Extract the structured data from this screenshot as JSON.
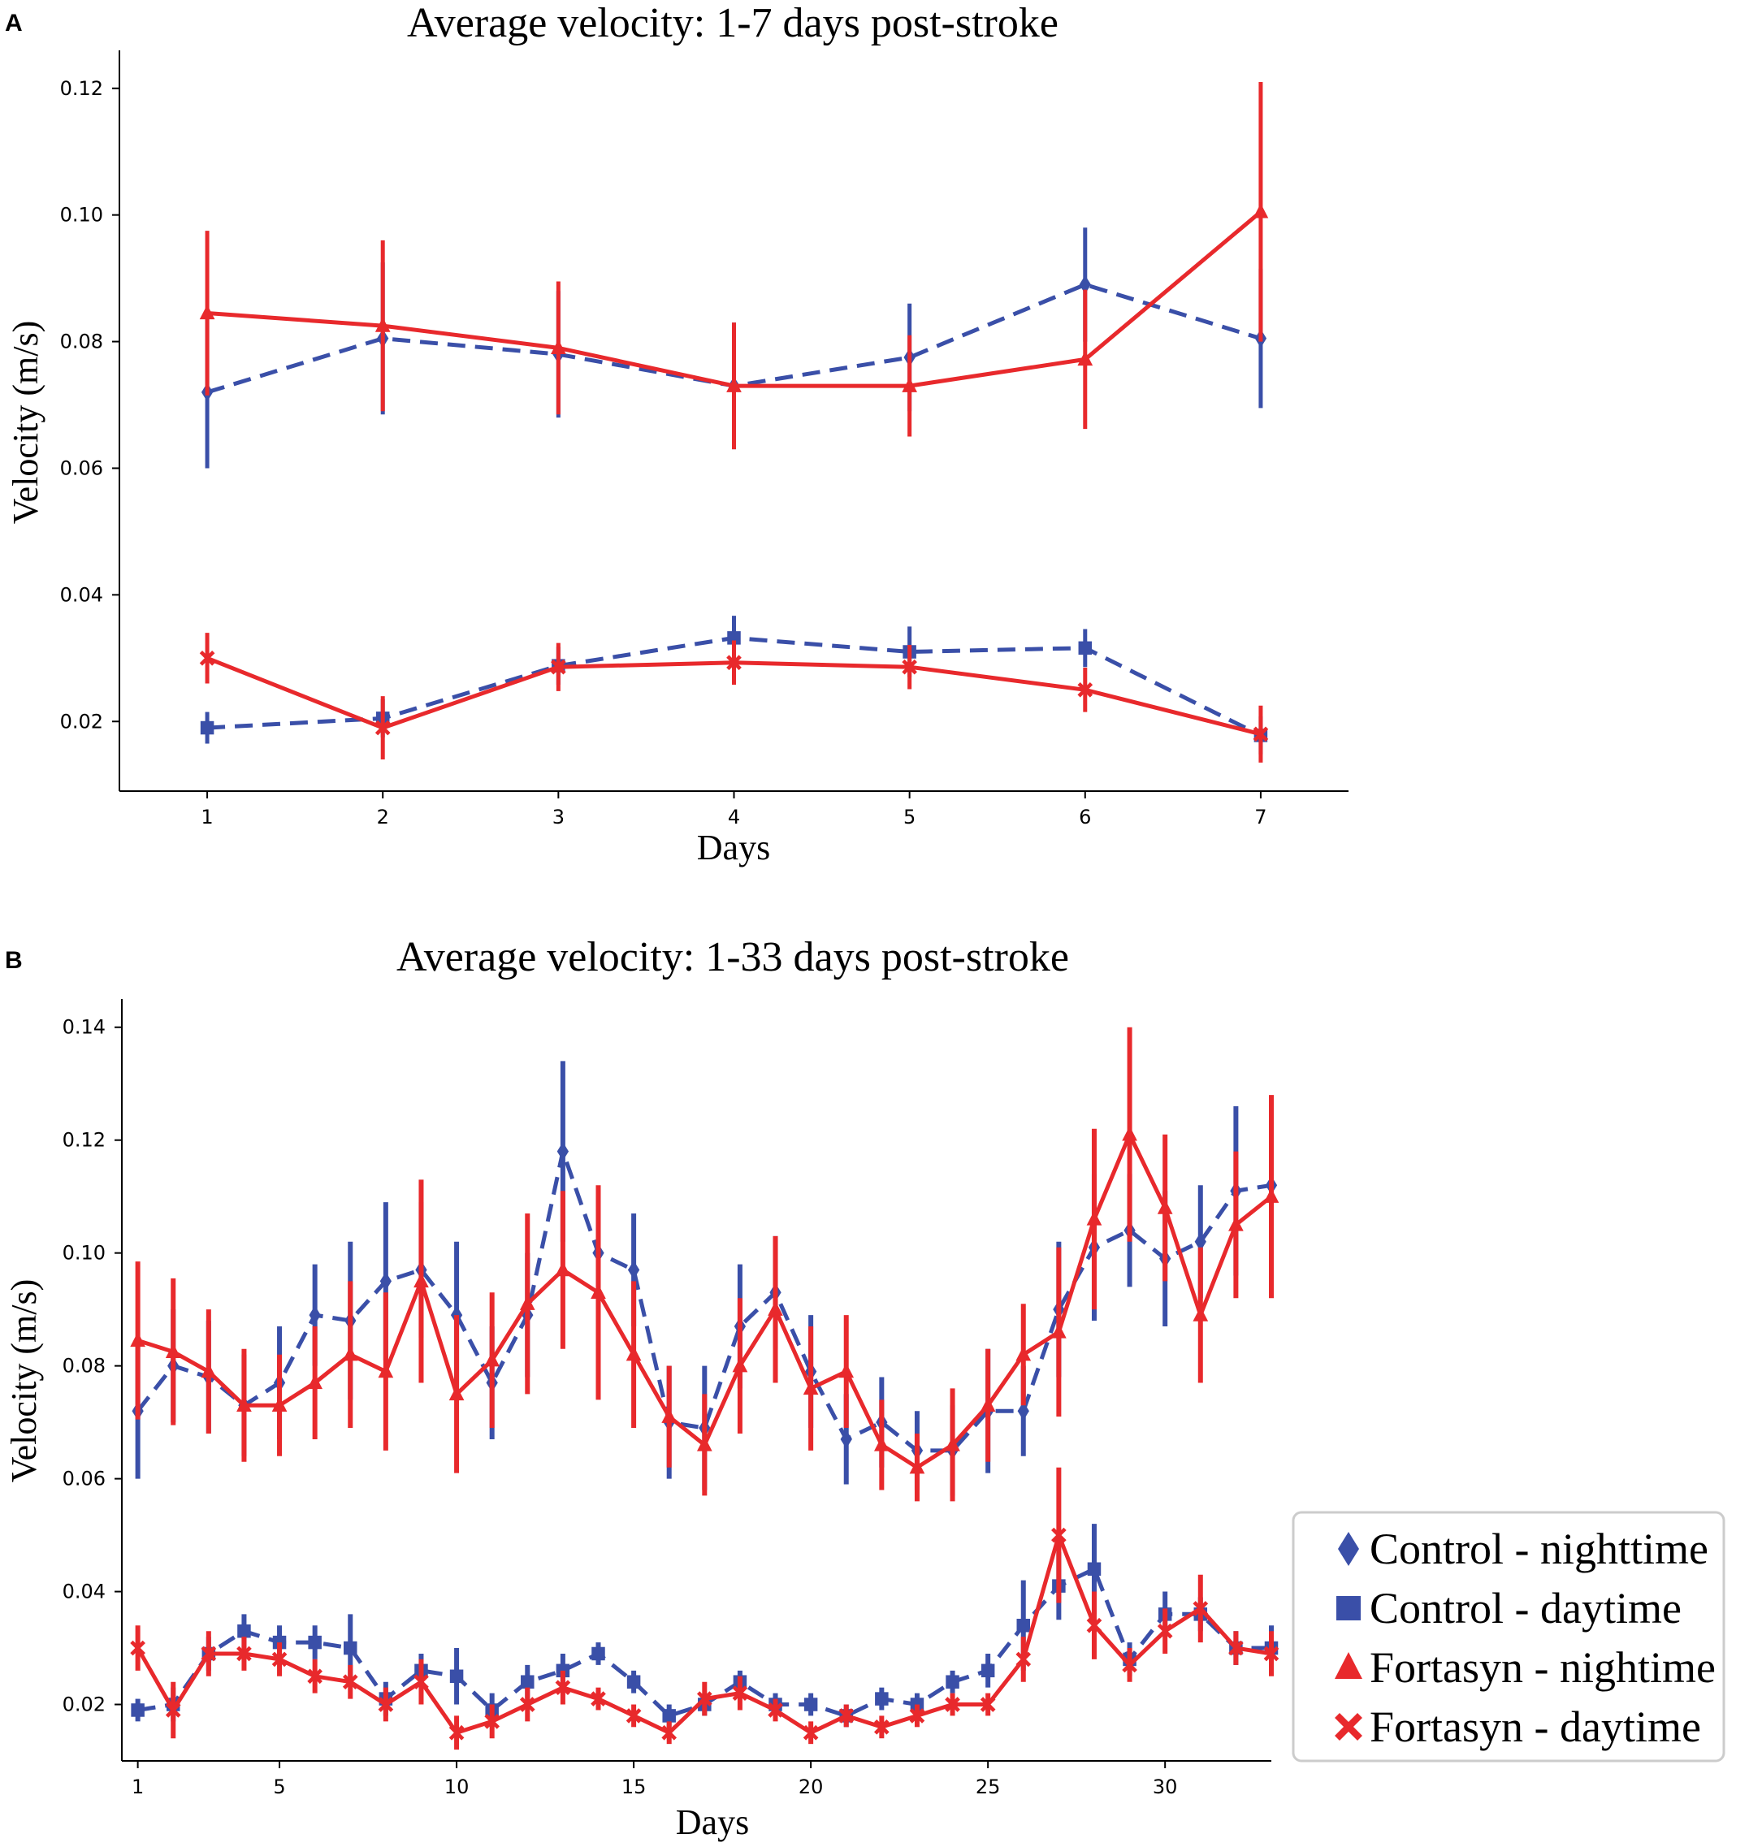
{
  "figure": {
    "panels": [
      {
        "letter": "A"
      },
      {
        "letter": "B"
      }
    ]
  },
  "colors": {
    "control": "#3a4fa8",
    "fortasyn": "#e8292c",
    "axis": "#000000",
    "legend_border": "#cccccc"
  },
  "legend": {
    "items": [
      {
        "label": "Control - nighttime",
        "marker": "diamond",
        "color": "#3a4fa8"
      },
      {
        "label": "Control - daytime",
        "marker": "square",
        "color": "#3a4fa8"
      },
      {
        "label": "Fortasyn - nightime",
        "marker": "triangle",
        "color": "#e8292c"
      },
      {
        "label": "Fortasyn - daytime",
        "marker": "x",
        "color": "#e8292c"
      }
    ]
  },
  "chart_data": [
    {
      "type": "line",
      "title": "Average velocity: 1-7 days post-stroke",
      "xlabel": "Days",
      "ylabel": "Velocity (m/s)",
      "xlim": [
        0.5,
        7.5
      ],
      "ylim": [
        0.009,
        0.126
      ],
      "xticks": [
        1,
        2,
        3,
        4,
        5,
        6,
        7
      ],
      "xtick_labels": [
        "1",
        "2",
        "3",
        "4",
        "5",
        "6",
        "7"
      ],
      "yticks": [
        0.02,
        0.04,
        0.06,
        0.08,
        0.1,
        0.12
      ],
      "ytick_labels": [
        "0.02",
        "0.04",
        "0.06",
        "0.08",
        "0.10",
        "0.12"
      ],
      "x": [
        1,
        2,
        3,
        4,
        5,
        6,
        7
      ],
      "series": [
        {
          "name": "Control - nighttime",
          "marker": "diamond",
          "dashed": true,
          "color": "#3a4fa8",
          "values": [
            0.072,
            0.0805,
            0.078,
            0.073,
            0.0775,
            0.089,
            0.0805
          ],
          "err": [
            0.012,
            0.012,
            0.01,
            0.01,
            0.0085,
            0.009,
            0.011
          ]
        },
        {
          "name": "Control - daytime",
          "marker": "square",
          "dashed": true,
          "color": "#3a4fa8",
          "values": [
            0.019,
            0.0205,
            0.0288,
            0.0332,
            0.031,
            0.0316,
            0.0178
          ],
          "err": [
            0.0025,
            0.003,
            0.003,
            0.0035,
            0.004,
            0.003,
            0.003
          ]
        },
        {
          "name": "Fortasyn - nightime",
          "marker": "triangle",
          "dashed": false,
          "color": "#e8292c",
          "values": [
            0.0845,
            0.0825,
            0.079,
            0.073,
            0.073,
            0.0772,
            0.1005
          ],
          "err": [
            0.013,
            0.0135,
            0.0105,
            0.01,
            0.008,
            0.011,
            0.0205
          ]
        },
        {
          "name": "Fortasyn - daytime",
          "marker": "x",
          "dashed": false,
          "color": "#e8292c",
          "values": [
            0.03,
            0.019,
            0.0286,
            0.0293,
            0.0286,
            0.025,
            0.018
          ],
          "err": [
            0.004,
            0.005,
            0.0038,
            0.0035,
            0.0035,
            0.0035,
            0.0045
          ]
        }
      ]
    },
    {
      "type": "line",
      "title": "Average velocity: 1-33 days post-stroke",
      "xlabel": "Days",
      "ylabel": "Velocity (m/s)",
      "xlim": [
        0.55,
        33.0
      ],
      "ylim": [
        0.01,
        0.145
      ],
      "xticks": [
        1,
        5,
        10,
        15,
        20,
        25,
        30
      ],
      "xtick_labels": [
        "1",
        "5",
        "10",
        "15",
        "20",
        "25",
        "30"
      ],
      "yticks": [
        0.02,
        0.04,
        0.06,
        0.08,
        0.1,
        0.12,
        0.14
      ],
      "ytick_labels": [
        "0.02",
        "0.04",
        "0.06",
        "0.08",
        "0.10",
        "0.12",
        "0.14"
      ],
      "x": [
        1,
        2,
        3,
        4,
        5,
        6,
        7,
        8,
        9,
        10,
        11,
        12,
        13,
        14,
        15,
        16,
        17,
        18,
        19,
        20,
        21,
        22,
        23,
        24,
        25,
        26,
        27,
        28,
        29,
        30,
        31,
        32,
        33
      ],
      "series": [
        {
          "name": "Control - nighttime",
          "marker": "diamond",
          "dashed": true,
          "color": "#3a4fa8",
          "values": [
            0.072,
            0.08,
            0.078,
            0.073,
            0.077,
            0.089,
            0.088,
            0.095,
            0.097,
            0.089,
            0.077,
            0.089,
            0.118,
            0.1,
            0.097,
            0.07,
            0.069,
            0.087,
            0.093,
            0.079,
            0.067,
            0.07,
            0.065,
            0.065,
            0.072,
            0.072,
            0.09,
            0.101,
            0.104,
            0.099,
            0.102,
            0.111,
            0.112
          ],
          "err": [
            0.012,
            0.01,
            0.01,
            0.009,
            0.01,
            0.009,
            0.014,
            0.014,
            0.012,
            0.013,
            0.01,
            0.011,
            0.016,
            0.01,
            0.01,
            0.01,
            0.011,
            0.011,
            0.01,
            0.01,
            0.008,
            0.008,
            0.007,
            0.008,
            0.011,
            0.008,
            0.012,
            0.013,
            0.01,
            0.012,
            0.01,
            0.015,
            0.012
          ]
        },
        {
          "name": "Control - daytime",
          "marker": "square",
          "dashed": true,
          "color": "#3a4fa8",
          "values": [
            0.019,
            0.02,
            0.029,
            0.033,
            0.031,
            0.031,
            0.03,
            0.021,
            0.026,
            0.025,
            0.019,
            0.024,
            0.026,
            0.029,
            0.024,
            0.018,
            0.02,
            0.024,
            0.02,
            0.02,
            0.018,
            0.021,
            0.02,
            0.024,
            0.026,
            0.034,
            0.041,
            0.044,
            0.028,
            0.036,
            0.036,
            0.03,
            0.03
          ],
          "err": [
            0.002,
            0.003,
            0.003,
            0.003,
            0.003,
            0.003,
            0.006,
            0.003,
            0.003,
            0.005,
            0.003,
            0.003,
            0.003,
            0.002,
            0.002,
            0.002,
            0.002,
            0.002,
            0.002,
            0.002,
            0.002,
            0.002,
            0.002,
            0.002,
            0.003,
            0.008,
            0.006,
            0.008,
            0.003,
            0.004,
            0.003,
            0.003,
            0.004
          ]
        },
        {
          "name": "Fortasyn - nightime",
          "marker": "triangle",
          "dashed": false,
          "color": "#e8292c",
          "values": [
            0.0845,
            0.0825,
            0.079,
            0.073,
            0.073,
            0.077,
            0.082,
            0.079,
            0.095,
            0.075,
            0.081,
            0.091,
            0.097,
            0.093,
            0.082,
            0.071,
            0.066,
            0.08,
            0.09,
            0.076,
            0.079,
            0.066,
            0.062,
            0.066,
            0.073,
            0.082,
            0.086,
            0.106,
            0.121,
            0.108,
            0.089,
            0.105,
            0.11
          ],
          "err": [
            0.014,
            0.013,
            0.011,
            0.01,
            0.009,
            0.01,
            0.013,
            0.014,
            0.018,
            0.014,
            0.012,
            0.016,
            0.014,
            0.019,
            0.013,
            0.009,
            0.009,
            0.012,
            0.013,
            0.011,
            0.01,
            0.008,
            0.006,
            0.01,
            0.01,
            0.009,
            0.015,
            0.016,
            0.019,
            0.013,
            0.012,
            0.013,
            0.018
          ]
        },
        {
          "name": "Fortasyn - daytime",
          "marker": "x",
          "dashed": false,
          "color": "#e8292c",
          "values": [
            0.03,
            0.019,
            0.029,
            0.029,
            0.028,
            0.025,
            0.024,
            0.02,
            0.024,
            0.015,
            0.017,
            0.02,
            0.023,
            0.021,
            0.018,
            0.015,
            0.021,
            0.022,
            0.019,
            0.015,
            0.018,
            0.016,
            0.018,
            0.02,
            0.02,
            0.028,
            0.05,
            0.034,
            0.027,
            0.033,
            0.037,
            0.03,
            0.029
          ],
          "err": [
            0.004,
            0.005,
            0.004,
            0.003,
            0.003,
            0.003,
            0.003,
            0.003,
            0.004,
            0.003,
            0.003,
            0.003,
            0.003,
            0.002,
            0.002,
            0.002,
            0.003,
            0.003,
            0.002,
            0.002,
            0.002,
            0.002,
            0.002,
            0.002,
            0.002,
            0.004,
            0.012,
            0.006,
            0.003,
            0.004,
            0.006,
            0.003,
            0.004
          ]
        }
      ]
    }
  ]
}
